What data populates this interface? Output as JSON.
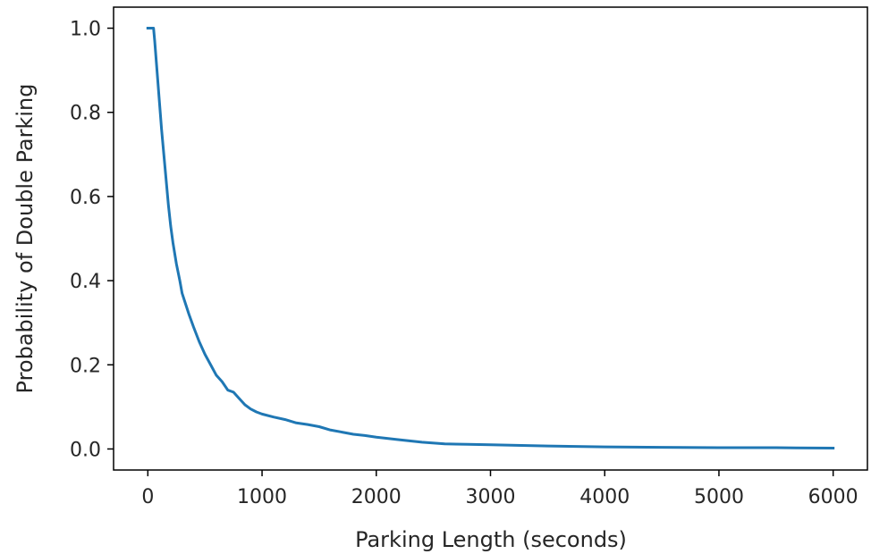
{
  "chart_data": {
    "type": "line",
    "title": "",
    "xlabel": "Parking Length (seconds)",
    "ylabel": "Probability of Double Parking",
    "xlim": [
      -300,
      6300
    ],
    "ylim": [
      -0.05,
      1.05
    ],
    "xticks": [
      0,
      1000,
      2000,
      3000,
      4000,
      5000,
      6000
    ],
    "xtick_labels": [
      "0",
      "1000",
      "2000",
      "3000",
      "4000",
      "5000",
      "6000"
    ],
    "yticks": [
      0.0,
      0.2,
      0.4,
      0.6,
      0.8,
      1.0
    ],
    "ytick_labels": [
      "0.0",
      "0.2",
      "0.4",
      "0.6",
      "0.8",
      "1.0"
    ],
    "grid": false,
    "legend": "none",
    "series": [
      {
        "color": "#1f77b4",
        "x": [
          0,
          50,
          60,
          80,
          100,
          120,
          140,
          160,
          180,
          200,
          220,
          250,
          280,
          300,
          330,
          360,
          400,
          450,
          500,
          550,
          600,
          650,
          700,
          750,
          800,
          850,
          900,
          950,
          1000,
          1100,
          1200,
          1300,
          1400,
          1500,
          1600,
          1700,
          1800,
          1900,
          2000,
          2200,
          2400,
          2600,
          2800,
          3000,
          3500,
          4000,
          4500,
          5000,
          5500,
          6000
        ],
        "y": [
          1.0,
          1.0,
          0.97,
          0.9,
          0.83,
          0.76,
          0.7,
          0.64,
          0.58,
          0.53,
          0.49,
          0.44,
          0.4,
          0.37,
          0.345,
          0.32,
          0.29,
          0.255,
          0.225,
          0.2,
          0.175,
          0.16,
          0.14,
          0.135,
          0.12,
          0.105,
          0.095,
          0.088,
          0.083,
          0.076,
          0.07,
          0.062,
          0.058,
          0.053,
          0.045,
          0.04,
          0.035,
          0.032,
          0.028,
          0.022,
          0.016,
          0.012,
          0.011,
          0.01,
          0.007,
          0.005,
          0.004,
          0.003,
          0.003,
          0.002
        ]
      }
    ]
  }
}
